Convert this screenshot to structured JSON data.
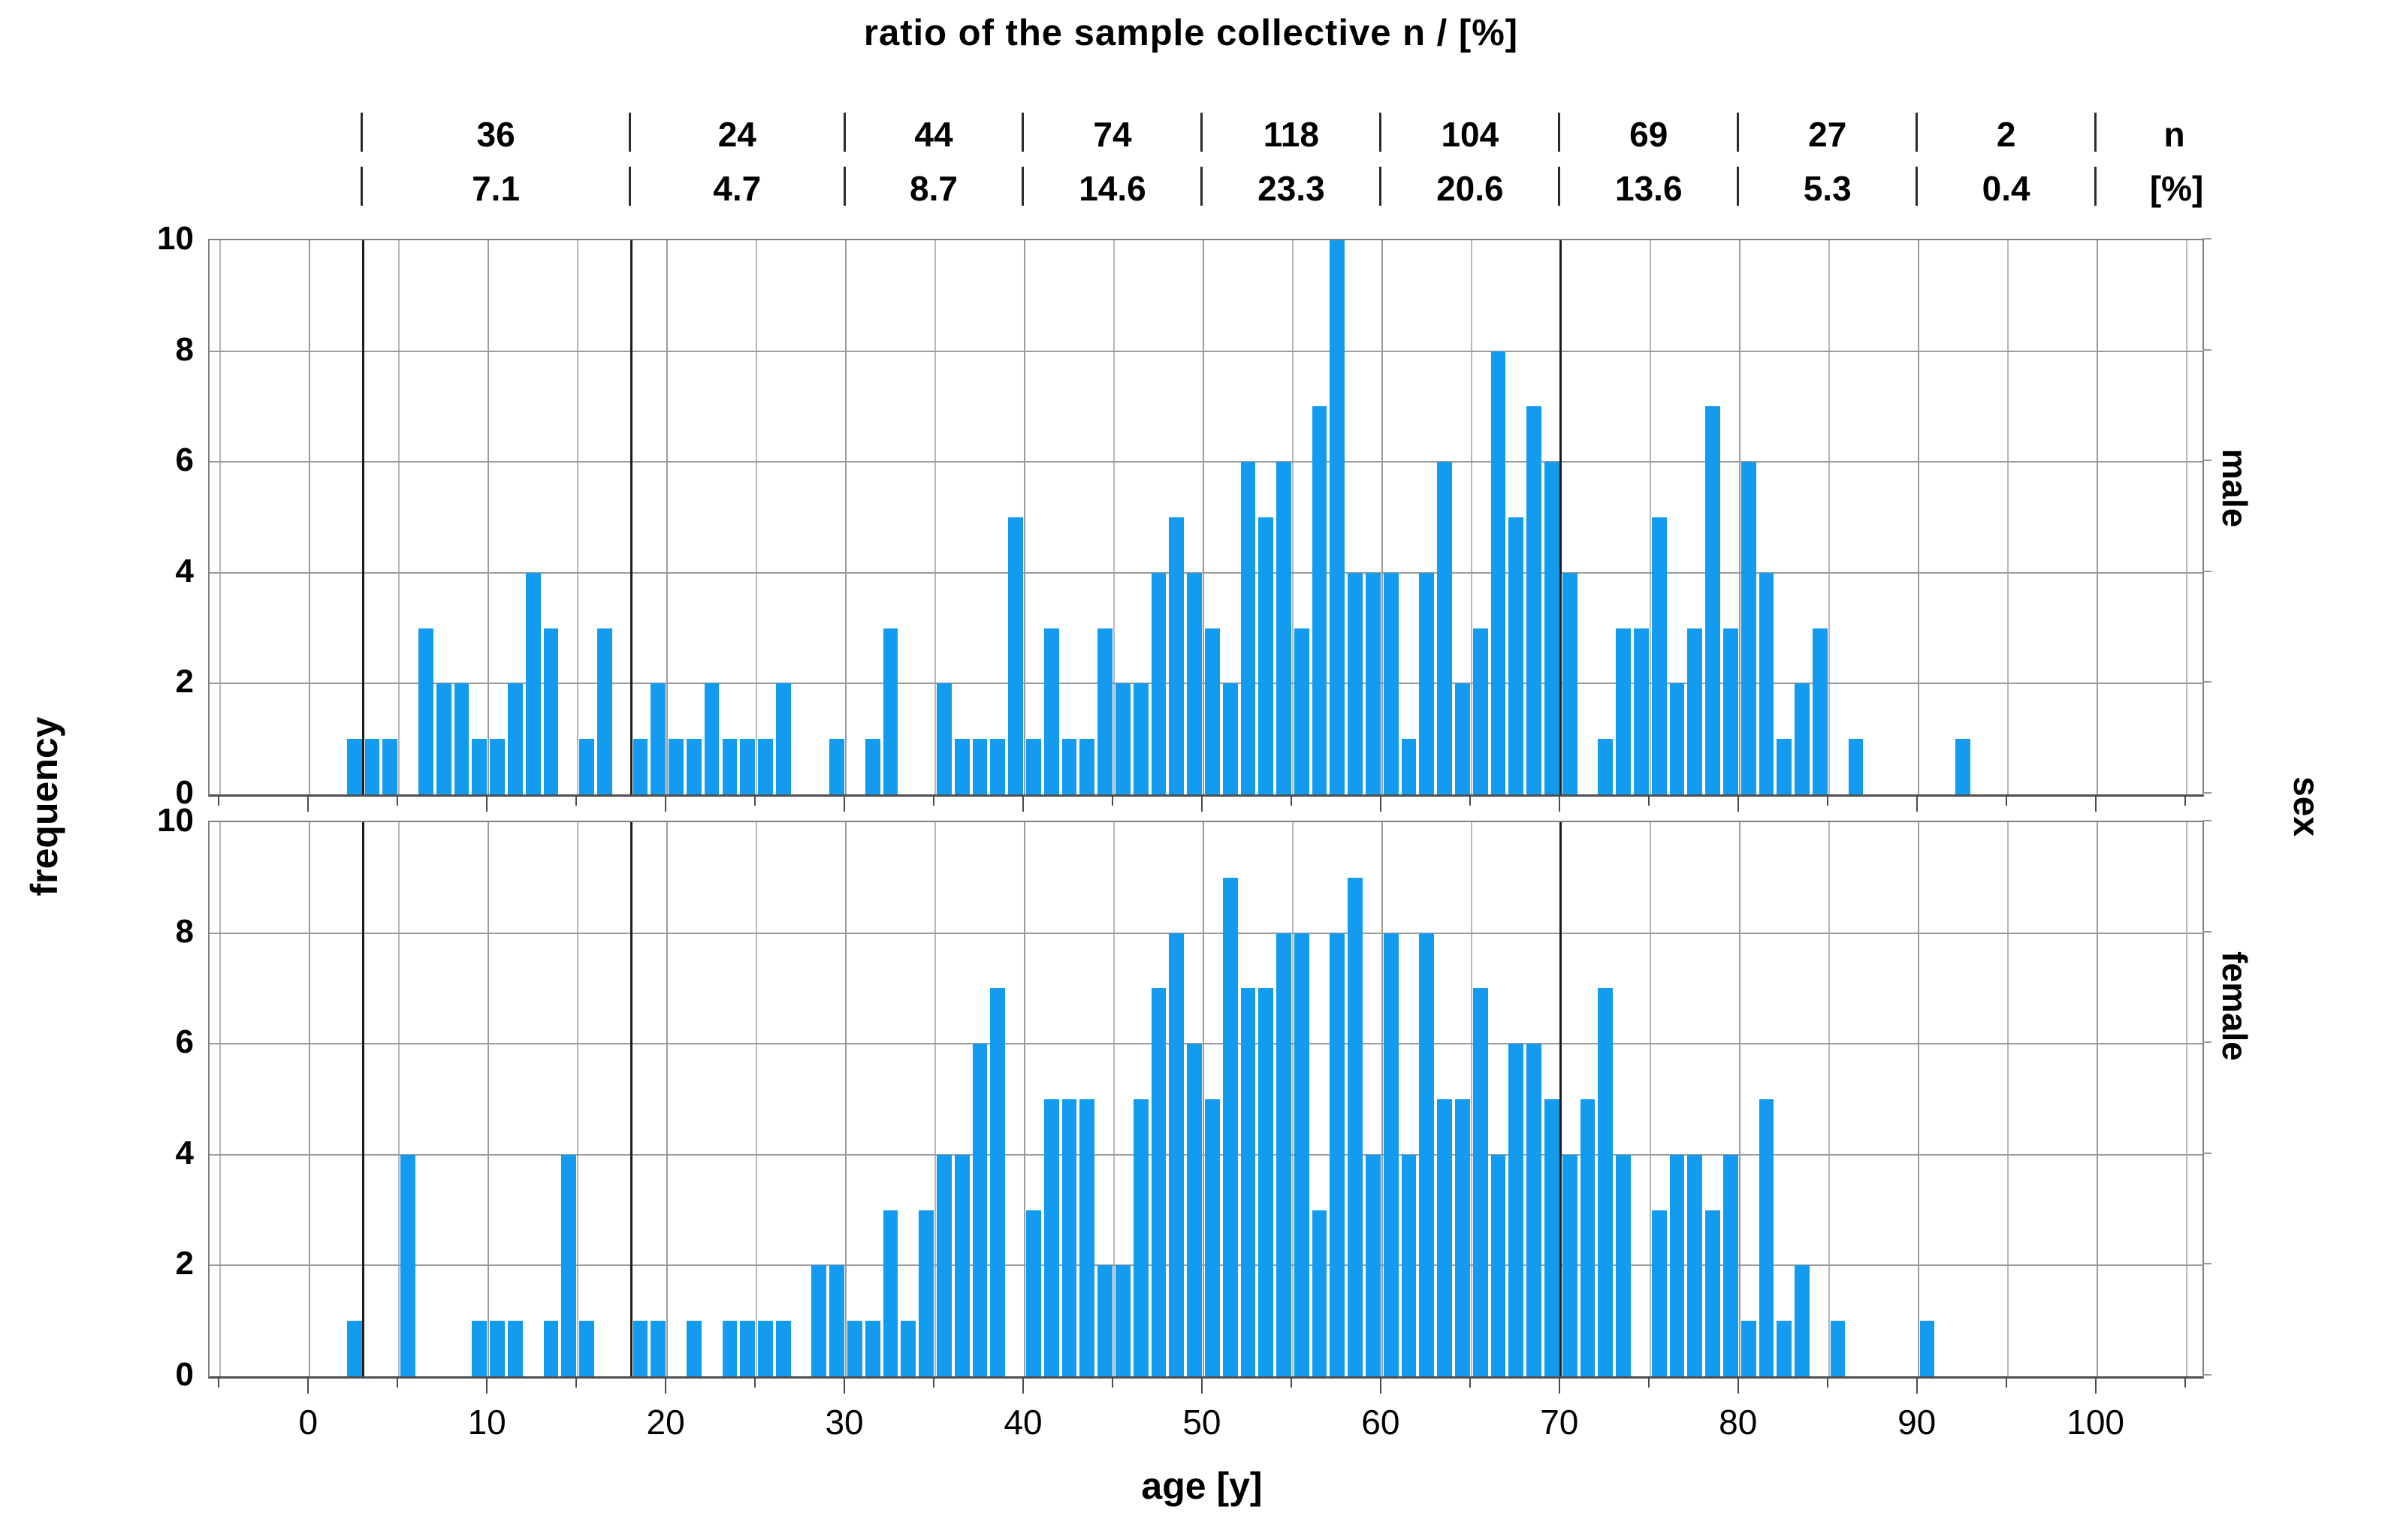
{
  "title": "ratio of the sample collective n / [%]",
  "top_axis": {
    "unit_top": "n",
    "unit_bottom": "[%]",
    "boundaries_age": [
      3,
      18,
      30,
      40,
      50,
      60,
      70,
      80,
      90,
      100
    ],
    "categories": [
      {
        "range": "3-18",
        "n": "36",
        "pct": "7.1"
      },
      {
        "range": "18-30",
        "n": "24",
        "pct": "4.7"
      },
      {
        "range": "30-40",
        "n": "44",
        "pct": "8.7"
      },
      {
        "range": "40-50",
        "n": "74",
        "pct": "14.6"
      },
      {
        "range": "50-60",
        "n": "118",
        "pct": "23.3"
      },
      {
        "range": "60-70",
        "n": "104",
        "pct": "20.6"
      },
      {
        "range": "70-80",
        "n": "69",
        "pct": "13.6"
      },
      {
        "range": "80-90",
        "n": "27",
        "pct": "5.3"
      },
      {
        "range": "90-100",
        "n": "2",
        "pct": "0.4"
      }
    ]
  },
  "y_axis": {
    "label": "frequency",
    "tick_values": [
      0,
      2,
      4,
      6,
      8,
      10
    ]
  },
  "x_axis": {
    "label": "age [y]",
    "tick_values": [
      0,
      10,
      20,
      30,
      40,
      50,
      60,
      70,
      80,
      90,
      100
    ]
  },
  "right_axis": {
    "group_label": "sex",
    "panel_labels": [
      "male",
      "female"
    ]
  },
  "colors": {
    "bar": "#129BEF",
    "grid_minor": "#b7b7b7",
    "grid_major": "#9b9b9b",
    "panel_border": "#7f7f7f",
    "baseline": "#4f4f4f",
    "category_line": "#1c1c1c",
    "text": "#000000"
  },
  "chart_data": {
    "type": "bar",
    "subtype": "stacked-panel-histogram",
    "title": "ratio of the sample collective n / [%]",
    "xlabel": "age [y]",
    "ylabel": "frequency",
    "bin_width_years": 1,
    "x_range": [
      -5.6,
      105.9
    ],
    "y_range": [
      0,
      10
    ],
    "x_grid_step": 5,
    "y_grid_step": 2,
    "grid": true,
    "category_boundary_lines_age": [
      3,
      18,
      70
    ],
    "series": [
      {
        "name": "male",
        "bins": [
          [
            2,
            1
          ],
          [
            3,
            1
          ],
          [
            4,
            1
          ],
          [
            6,
            3
          ],
          [
            7,
            2
          ],
          [
            8,
            2
          ],
          [
            9,
            1
          ],
          [
            10,
            1
          ],
          [
            11,
            2
          ],
          [
            12,
            4
          ],
          [
            13,
            3
          ],
          [
            15,
            1
          ],
          [
            16,
            3
          ],
          [
            18,
            1
          ],
          [
            19,
            2
          ],
          [
            20,
            1
          ],
          [
            21,
            1
          ],
          [
            22,
            2
          ],
          [
            23,
            1
          ],
          [
            24,
            1
          ],
          [
            25,
            1
          ],
          [
            26,
            2
          ],
          [
            29,
            1
          ],
          [
            31,
            1
          ],
          [
            32,
            3
          ],
          [
            35,
            2
          ],
          [
            36,
            1
          ],
          [
            37,
            1
          ],
          [
            38,
            1
          ],
          [
            39,
            5
          ],
          [
            40,
            1
          ],
          [
            41,
            3
          ],
          [
            42,
            1
          ],
          [
            43,
            1
          ],
          [
            44,
            3
          ],
          [
            45,
            2
          ],
          [
            46,
            2
          ],
          [
            47,
            4
          ],
          [
            48,
            5
          ],
          [
            49,
            4
          ],
          [
            50,
            3
          ],
          [
            51,
            2
          ],
          [
            52,
            6
          ],
          [
            53,
            5
          ],
          [
            54,
            6
          ],
          [
            55,
            3
          ],
          [
            56,
            7
          ],
          [
            57,
            10
          ],
          [
            58,
            4
          ],
          [
            59,
            4
          ],
          [
            60,
            4
          ],
          [
            61,
            1
          ],
          [
            62,
            4
          ],
          [
            63,
            6
          ],
          [
            64,
            2
          ],
          [
            65,
            3
          ],
          [
            66,
            8
          ],
          [
            67,
            5
          ],
          [
            68,
            7
          ],
          [
            69,
            6
          ],
          [
            70,
            4
          ],
          [
            72,
            1
          ],
          [
            73,
            3
          ],
          [
            74,
            3
          ],
          [
            75,
            5
          ],
          [
            76,
            2
          ],
          [
            77,
            3
          ],
          [
            78,
            7
          ],
          [
            79,
            3
          ],
          [
            80,
            6
          ],
          [
            81,
            4
          ],
          [
            82,
            1
          ],
          [
            83,
            2
          ],
          [
            84,
            3
          ],
          [
            86,
            1
          ],
          [
            92,
            1
          ]
        ]
      },
      {
        "name": "female",
        "bins": [
          [
            2,
            1
          ],
          [
            5,
            4
          ],
          [
            9,
            1
          ],
          [
            10,
            1
          ],
          [
            11,
            1
          ],
          [
            13,
            1
          ],
          [
            14,
            4
          ],
          [
            15,
            1
          ],
          [
            18,
            1
          ],
          [
            19,
            1
          ],
          [
            21,
            1
          ],
          [
            23,
            1
          ],
          [
            24,
            1
          ],
          [
            25,
            1
          ],
          [
            26,
            1
          ],
          [
            28,
            2
          ],
          [
            29,
            2
          ],
          [
            30,
            1
          ],
          [
            31,
            1
          ],
          [
            32,
            3
          ],
          [
            33,
            1
          ],
          [
            34,
            3
          ],
          [
            35,
            4
          ],
          [
            36,
            4
          ],
          [
            37,
            6
          ],
          [
            38,
            7
          ],
          [
            40,
            3
          ],
          [
            41,
            5
          ],
          [
            42,
            5
          ],
          [
            43,
            5
          ],
          [
            44,
            2
          ],
          [
            45,
            2
          ],
          [
            46,
            5
          ],
          [
            47,
            7
          ],
          [
            48,
            8
          ],
          [
            49,
            6
          ],
          [
            50,
            5
          ],
          [
            51,
            9
          ],
          [
            52,
            7
          ],
          [
            53,
            7
          ],
          [
            54,
            8
          ],
          [
            55,
            8
          ],
          [
            56,
            3
          ],
          [
            57,
            8
          ],
          [
            58,
            9
          ],
          [
            59,
            4
          ],
          [
            60,
            8
          ],
          [
            61,
            4
          ],
          [
            62,
            8
          ],
          [
            63,
            5
          ],
          [
            64,
            5
          ],
          [
            65,
            7
          ],
          [
            66,
            4
          ],
          [
            67,
            6
          ],
          [
            68,
            6
          ],
          [
            69,
            5
          ],
          [
            70,
            4
          ],
          [
            71,
            5
          ],
          [
            72,
            7
          ],
          [
            73,
            4
          ],
          [
            75,
            3
          ],
          [
            76,
            4
          ],
          [
            77,
            4
          ],
          [
            78,
            3
          ],
          [
            79,
            4
          ],
          [
            80,
            1
          ],
          [
            81,
            5
          ],
          [
            82,
            1
          ],
          [
            83,
            2
          ],
          [
            85,
            1
          ],
          [
            90,
            1
          ]
        ]
      }
    ]
  },
  "layout_note_visible_panels": [
    "male (top)",
    "female (bottom)"
  ]
}
